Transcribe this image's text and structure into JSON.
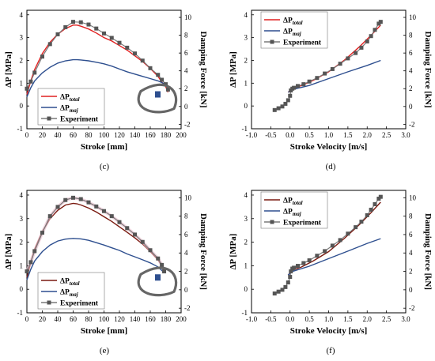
{
  "figure": {
    "panel_letters": [
      "(c)",
      "(d)",
      "(e)",
      "(f)"
    ]
  },
  "colors": {
    "total": "#e02020",
    "total_dark": "#7a1a10",
    "maj": "#2e4f8f",
    "exp_line": "#7a7a7a",
    "exp_marker": "#555555",
    "envelope": "#e6b8c8"
  },
  "legend": {
    "total_main": "ΔP",
    "total_sub": "total",
    "maj_main": "ΔP",
    "maj_sub": "maj",
    "experiment": "Experiment"
  },
  "chart_data": [
    {
      "panel": "(c)",
      "type": "line",
      "xlabel": "Stroke [mm]",
      "ylabel": "ΔP [MPa]",
      "y2label": "Damping Force [kN]",
      "xlim": [
        0,
        200
      ],
      "ylim": [
        -1,
        4.2
      ],
      "y2lim": [
        -2.5,
        10.8
      ],
      "xticks": [
        0,
        20,
        40,
        60,
        80,
        100,
        120,
        140,
        160,
        180,
        200
      ],
      "yticks": [
        -1,
        0,
        1,
        2,
        3,
        4
      ],
      "y2ticks": [
        -2,
        0,
        2,
        4,
        6,
        8,
        10
      ],
      "legend_position": "lower-left",
      "series": [
        {
          "name": "ΔPtotal",
          "x": [
            0,
            5,
            10,
            20,
            30,
            40,
            50,
            60,
            65,
            70,
            80,
            90,
            100,
            110,
            120,
            130,
            140,
            150,
            160,
            170,
            175,
            180,
            183
          ],
          "y": [
            0.5,
            1.1,
            1.6,
            2.3,
            2.8,
            3.15,
            3.4,
            3.55,
            3.55,
            3.5,
            3.38,
            3.2,
            3.0,
            2.85,
            2.65,
            2.45,
            2.2,
            1.95,
            1.65,
            1.3,
            1.05,
            0.85,
            0.6
          ]
        },
        {
          "name": "ΔPmaj",
          "x": [
            0,
            5,
            10,
            20,
            30,
            40,
            50,
            60,
            65,
            70,
            80,
            90,
            100,
            110,
            120,
            130,
            140,
            150,
            160,
            170,
            180,
            183
          ],
          "y": [
            0.4,
            0.8,
            1.1,
            1.45,
            1.7,
            1.88,
            1.98,
            2.03,
            2.03,
            2.02,
            1.98,
            1.92,
            1.85,
            1.75,
            1.62,
            1.5,
            1.4,
            1.3,
            1.2,
            1.1,
            0.95,
            0.75
          ]
        },
        {
          "name": "Experiment",
          "x": [
            0,
            5,
            10,
            20,
            30,
            40,
            50,
            60,
            70,
            80,
            90,
            100,
            110,
            120,
            130,
            140,
            150,
            160,
            170,
            175,
            180,
            183
          ],
          "y2": [
            2.0,
            2.8,
            3.8,
            5.6,
            7.0,
            8.1,
            8.9,
            9.5,
            9.45,
            9.2,
            8.75,
            8.2,
            7.7,
            7.15,
            6.6,
            5.95,
            5.15,
            4.3,
            3.55,
            3.0,
            2.5,
            1.9
          ]
        }
      ]
    },
    {
      "panel": "(d)",
      "type": "line",
      "xlabel": "Stroke Velocity [m/s]",
      "ylabel": "ΔP [MPa]",
      "y2label": "Damping Force [kN]",
      "xlim": [
        -1,
        3
      ],
      "ylim": [
        -1,
        4.2
      ],
      "y2lim": [
        -2.5,
        10.8
      ],
      "xticks": [
        -1.0,
        -0.5,
        0.0,
        0.5,
        1.0,
        1.5,
        2.0,
        2.5,
        3.0
      ],
      "yticks": [
        -1,
        0,
        1,
        2,
        3,
        4
      ],
      "y2ticks": [
        -2,
        0,
        2,
        4,
        6,
        8,
        10
      ],
      "legend_position": "top-left",
      "series": [
        {
          "name": "ΔPtotal",
          "x": [
            -0.05,
            0.05,
            0.3,
            0.6,
            1.0,
            1.4,
            1.8,
            2.1,
            2.35
          ],
          "y": [
            0.6,
            0.75,
            0.9,
            1.12,
            1.5,
            2.0,
            2.6,
            3.1,
            3.55
          ]
        },
        {
          "name": "ΔPmaj",
          "x": [
            -0.05,
            0.05,
            0.5,
            1.0,
            1.5,
            2.0,
            2.35
          ],
          "y": [
            0.6,
            0.72,
            0.9,
            1.2,
            1.5,
            1.78,
            2.0
          ]
        },
        {
          "name": "Experiment",
          "x": [
            -0.4,
            -0.3,
            -0.2,
            -0.12,
            -0.05,
            0.0,
            0.02,
            0.06,
            0.1,
            0.2,
            0.35,
            0.5,
            0.7,
            0.9,
            1.1,
            1.3,
            1.5,
            1.7,
            1.85,
            2.0,
            2.1,
            2.2,
            2.3,
            2.35
          ],
          "y2": [
            -0.4,
            -0.2,
            0.0,
            0.3,
            0.7,
            1.2,
            1.8,
            2.0,
            2.1,
            2.3,
            2.5,
            2.8,
            3.2,
            3.7,
            4.2,
            4.8,
            5.4,
            6.0,
            6.6,
            7.3,
            7.9,
            8.6,
            9.3,
            9.5
          ]
        }
      ]
    },
    {
      "panel": "(e)",
      "type": "line",
      "xlabel": "Stroke [mm]",
      "ylabel": "ΔP [MPa]",
      "y2label": "Damping Force [kN]",
      "xlim": [
        0,
        200
      ],
      "ylim": [
        -1,
        4.2
      ],
      "y2lim": [
        -2.5,
        10.8
      ],
      "xticks": [
        0,
        20,
        40,
        60,
        80,
        100,
        120,
        140,
        160,
        180,
        200
      ],
      "yticks": [
        -1,
        0,
        1,
        2,
        3,
        4
      ],
      "y2ticks": [
        -2,
        0,
        2,
        4,
        6,
        8,
        10
      ],
      "legend_position": "lower-left",
      "series": [
        {
          "name": "ΔPtotal",
          "x": [
            0,
            5,
            10,
            20,
            30,
            40,
            50,
            60,
            65,
            70,
            80,
            90,
            100,
            110,
            120,
            130,
            140,
            150,
            160,
            170,
            175,
            178
          ],
          "y": [
            0.5,
            1.15,
            1.7,
            2.45,
            3.0,
            3.35,
            3.58,
            3.65,
            3.63,
            3.58,
            3.45,
            3.28,
            3.08,
            2.88,
            2.65,
            2.42,
            2.18,
            1.92,
            1.6,
            1.25,
            1.0,
            0.7
          ]
        },
        {
          "name": "ΔPmaj",
          "x": [
            0,
            5,
            10,
            20,
            30,
            40,
            50,
            60,
            70,
            80,
            90,
            100,
            110,
            120,
            130,
            140,
            150,
            160,
            170,
            178
          ],
          "y": [
            0.4,
            0.85,
            1.2,
            1.6,
            1.88,
            2.05,
            2.13,
            2.16,
            2.14,
            2.08,
            1.98,
            1.88,
            1.76,
            1.65,
            1.5,
            1.38,
            1.25,
            1.12,
            0.95,
            0.7
          ]
        },
        {
          "name": "Experiment",
          "x": [
            0,
            5,
            10,
            20,
            30,
            40,
            50,
            60,
            70,
            80,
            90,
            100,
            110,
            120,
            130,
            140,
            150,
            160,
            170,
            175,
            178
          ],
          "y2": [
            2.0,
            3.0,
            4.2,
            6.2,
            8.0,
            9.0,
            9.75,
            10.0,
            9.85,
            9.5,
            9.05,
            8.55,
            8.0,
            7.35,
            6.7,
            6.0,
            5.2,
            4.3,
            3.4,
            2.7,
            2.0
          ]
        }
      ]
    },
    {
      "panel": "(f)",
      "type": "line",
      "xlabel": "Stroke Velocity [m/s]",
      "ylabel": "ΔP [MPa]",
      "y2label": "Damping Force [kN]",
      "xlim": [
        -1,
        3
      ],
      "ylim": [
        -1,
        4.2
      ],
      "y2lim": [
        -2.5,
        10.8
      ],
      "xticks": [
        -1.0,
        -0.5,
        0.0,
        0.5,
        1.0,
        1.5,
        2.0,
        2.5,
        3.0
      ],
      "yticks": [
        -1,
        0,
        1,
        2,
        3,
        4
      ],
      "y2ticks": [
        -2,
        0,
        2,
        4,
        6,
        8,
        10
      ],
      "legend_position": "top-left",
      "series": [
        {
          "name": "ΔPtotal",
          "x": [
            -0.05,
            0.05,
            0.3,
            0.6,
            1.0,
            1.4,
            1.8,
            2.1,
            2.35
          ],
          "y": [
            0.6,
            0.8,
            0.95,
            1.2,
            1.6,
            2.15,
            2.75,
            3.25,
            3.7
          ]
        },
        {
          "name": "ΔPmaj",
          "x": [
            -0.05,
            0.05,
            0.5,
            1.0,
            1.5,
            2.0,
            2.35
          ],
          "y": [
            0.6,
            0.75,
            0.98,
            1.3,
            1.62,
            1.95,
            2.15
          ]
        },
        {
          "name": "Experiment",
          "x": [
            -0.4,
            -0.3,
            -0.2,
            -0.12,
            -0.05,
            0.0,
            0.02,
            0.06,
            0.1,
            0.2,
            0.35,
            0.5,
            0.7,
            0.9,
            1.1,
            1.3,
            1.5,
            1.7,
            1.85,
            2.0,
            2.1,
            2.2,
            2.3,
            2.35
          ],
          "y2": [
            -0.4,
            -0.2,
            0.0,
            0.3,
            0.8,
            1.4,
            2.0,
            2.3,
            2.4,
            2.6,
            2.9,
            3.2,
            3.7,
            4.2,
            4.8,
            5.4,
            6.1,
            6.8,
            7.4,
            8.1,
            8.7,
            9.3,
            9.9,
            10.1
          ]
        }
      ]
    }
  ]
}
